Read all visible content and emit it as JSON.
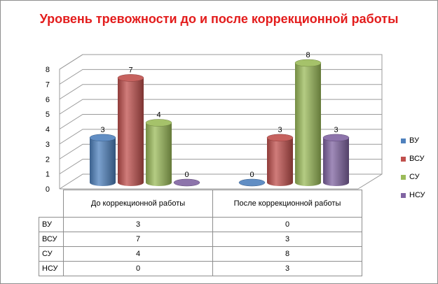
{
  "chart_data": {
    "type": "bar",
    "title": "Уровень тревожности  до и после  коррекционной работы",
    "categories": [
      "До коррекционной работы",
      "После коррекционной работы"
    ],
    "series": [
      {
        "name": "ВУ",
        "values": [
          3,
          0
        ],
        "color": "#4f81bd"
      },
      {
        "name": "ВСУ",
        "values": [
          7,
          3
        ],
        "color": "#c0504d"
      },
      {
        "name": "СУ",
        "values": [
          4,
          8
        ],
        "color": "#9bbb59"
      },
      {
        "name": "НСУ",
        "values": [
          0,
          3
        ],
        "color": "#8064a2"
      }
    ],
    "ylim": [
      0,
      8
    ],
    "yticks": [
      "0",
      "1",
      "2",
      "3",
      "4",
      "5",
      "6",
      "7",
      "8"
    ],
    "grid": true,
    "legend_position": "right",
    "style": "3d-cylinder",
    "data_table": true
  }
}
